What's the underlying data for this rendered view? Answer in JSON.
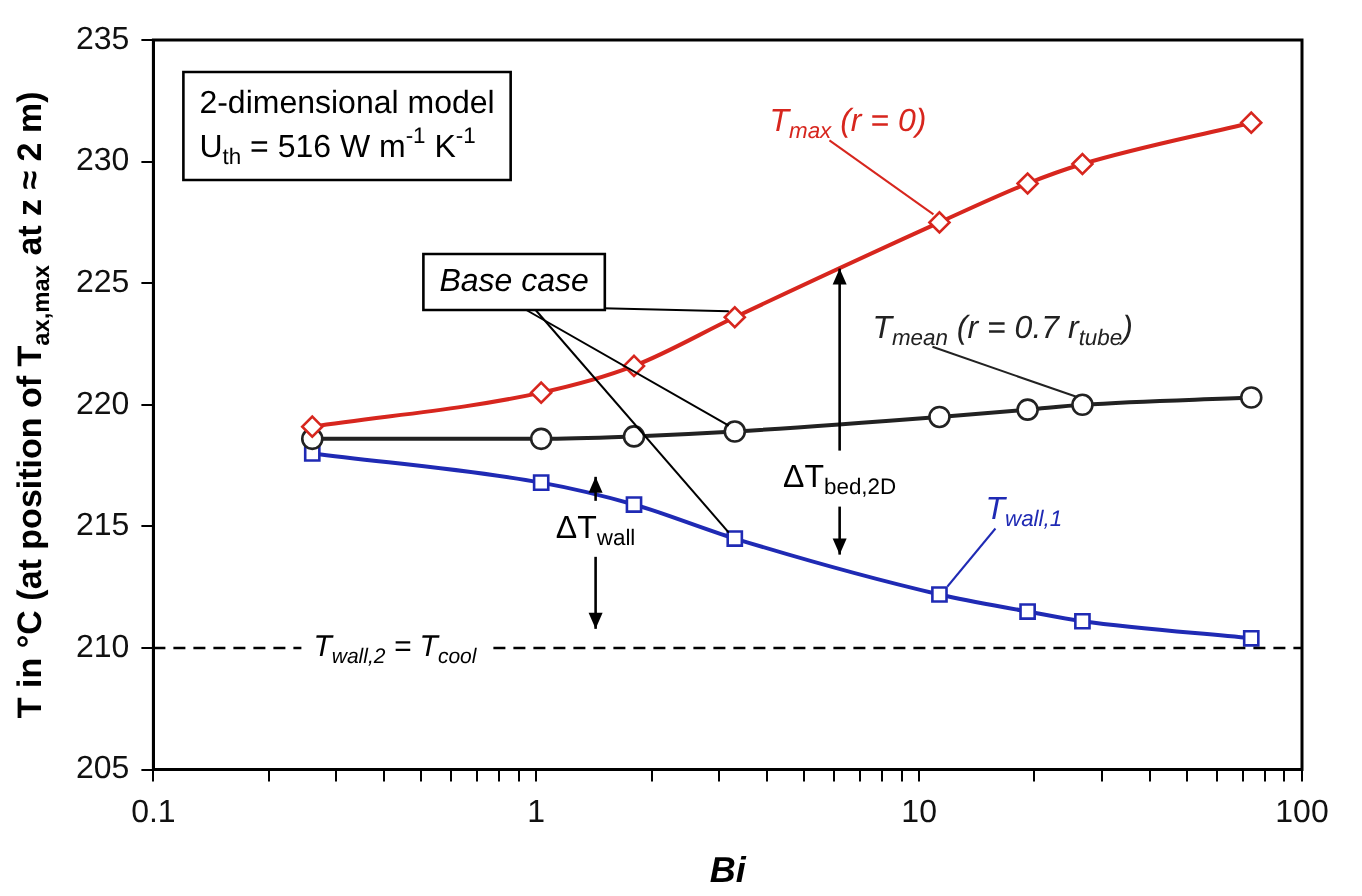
{
  "chart_data": {
    "type": "line",
    "xlabel": "Bi",
    "ylabel": "T in °C (at position of T$_{ax,max}$ at z ≈ 2 m)",
    "x": [
      0.26,
      1.03,
      1.8,
      3.3,
      11.3,
      19.2,
      26.7,
      73.7
    ],
    "series": [
      {
        "name": "T$_{max}$ (r = 0)",
        "color": "#d7261e",
        "marker": "diamond",
        "values": [
          219.1,
          220.5,
          221.6,
          223.6,
          227.5,
          229.1,
          229.9,
          231.6
        ]
      },
      {
        "name": "T$_{mean}$ (r = 0.7 r$_{tube}$)",
        "color": "#222222",
        "marker": "circle",
        "values": [
          218.6,
          218.6,
          218.7,
          218.9,
          219.5,
          219.8,
          220.0,
          220.3
        ]
      },
      {
        "name": "T$_{wall,1}$",
        "color": "#1f2ab4",
        "marker": "square",
        "values": [
          218.0,
          216.8,
          215.9,
          214.5,
          212.2,
          211.5,
          211.1,
          210.4
        ]
      }
    ],
    "log": "x",
    "xlim": [
      0.1,
      100
    ],
    "xticks": [
      0.1,
      {
        "value": 0.2,
        "label": null
      },
      {
        "value": 0.3,
        "label": null
      },
      {
        "value": 0.4,
        "label": null
      },
      {
        "value": 0.5,
        "label": null
      },
      {
        "value": 0.6,
        "label": null
      },
      {
        "value": 0.7,
        "label": null
      },
      {
        "value": 0.8,
        "label": null
      },
      {
        "value": 0.9,
        "label": null
      },
      1,
      {
        "value": 2,
        "label": null
      },
      {
        "value": 3,
        "label": null
      },
      {
        "value": 4,
        "label": null
      },
      {
        "value": 5,
        "label": null
      },
      {
        "value": 6,
        "label": null
      },
      {
        "value": 7,
        "label": null
      },
      {
        "value": 8,
        "label": null
      },
      {
        "value": 9,
        "label": null
      },
      10,
      {
        "value": 20,
        "label": null
      },
      {
        "value": 30,
        "label": null
      },
      {
        "value": 40,
        "label": null
      },
      {
        "value": 50,
        "label": null
      },
      {
        "value": 60,
        "label": null
      },
      {
        "value": 70,
        "label": null
      },
      {
        "value": 80,
        "label": null
      },
      {
        "value": 90,
        "label": null
      },
      100
    ],
    "ylim": [
      205,
      235
    ],
    "yticks": [
      205,
      210,
      215,
      220,
      225,
      230,
      235
    ],
    "ref_lines": [
      {
        "axis": "y",
        "value": 210,
        "label": "T$_{wall,2}$ = T$_{cool}$",
        "line_style": "dashed",
        "color": "#000000"
      }
    ],
    "annotations": [
      "2-dimensional model",
      "U$_{th}$ = 516 W m$^{-1}$ K$^{-1}$",
      {
        "text": "Base case",
        "x": 3.3,
        "y": 223.6
      },
      "ΔT$_{wall}$",
      {
        "text": "ΔT$_{bed,2D}$",
        "x": 6.2,
        "y": 225.6
      }
    ],
    "grid": false,
    "legend": false,
    "line_style": "solid"
  }
}
